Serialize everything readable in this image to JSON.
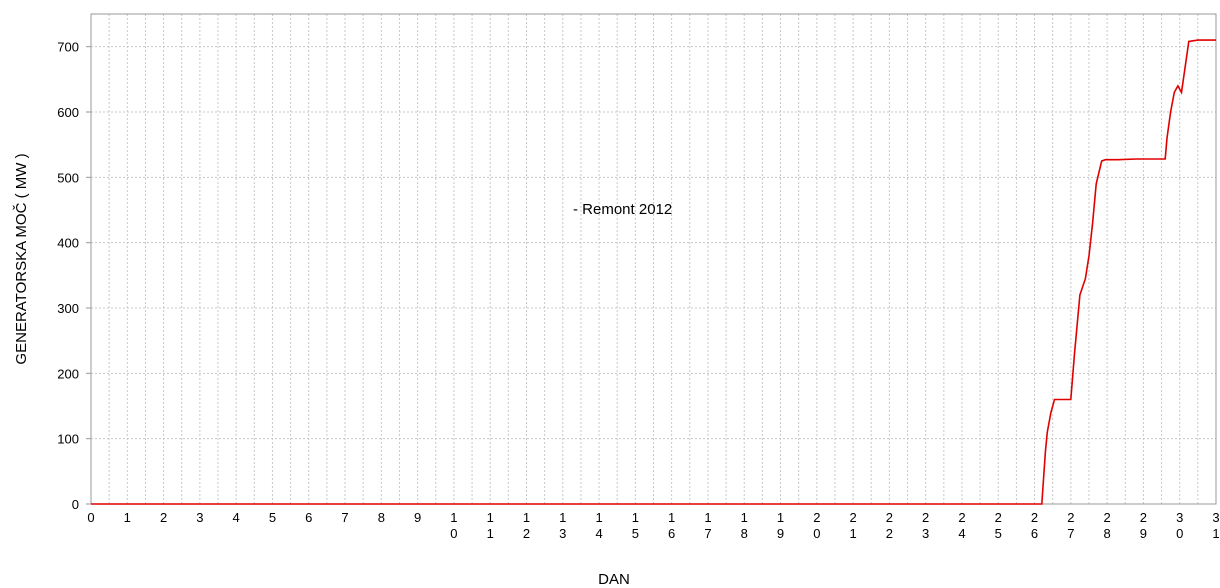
{
  "chart_data": {
    "type": "line",
    "title": "",
    "xlabel": "DAN",
    "ylabel": "GENERATORSKA MOČ  ( MW )",
    "annotation": "- Remont 2012",
    "xlim": [
      0,
      31
    ],
    "ylim": [
      0,
      750
    ],
    "grid": true,
    "x_ticks": [
      "0",
      "1",
      "2",
      "3",
      "4",
      "5",
      "6",
      "7",
      "8",
      "9",
      "10",
      "11",
      "12",
      "13",
      "14",
      "15",
      "16",
      "17",
      "18",
      "19",
      "20",
      "21",
      "22",
      "23",
      "24",
      "25",
      "26",
      "27",
      "28",
      "29",
      "30",
      "31"
    ],
    "y_ticks": [
      0,
      100,
      200,
      300,
      400,
      500,
      600,
      700
    ],
    "line_color": "#e00000",
    "series": [
      {
        "x": [
          0,
          26.2,
          26.3,
          26.35,
          26.45,
          26.55,
          26.7,
          27.0,
          27.1,
          27.25,
          27.4,
          27.5,
          27.6,
          27.7,
          27.85,
          27.95,
          28.05,
          28.3,
          28.8,
          29.6,
          29.65,
          29.75,
          29.85,
          29.95,
          30.05,
          30.25,
          30.5,
          31.0
        ],
        "y": [
          0,
          0,
          80,
          110,
          140,
          160,
          160,
          160,
          230,
          320,
          345,
          380,
          430,
          490,
          525,
          527,
          527,
          527,
          528,
          528,
          560,
          600,
          630,
          640,
          630,
          708,
          710,
          710
        ]
      }
    ]
  }
}
